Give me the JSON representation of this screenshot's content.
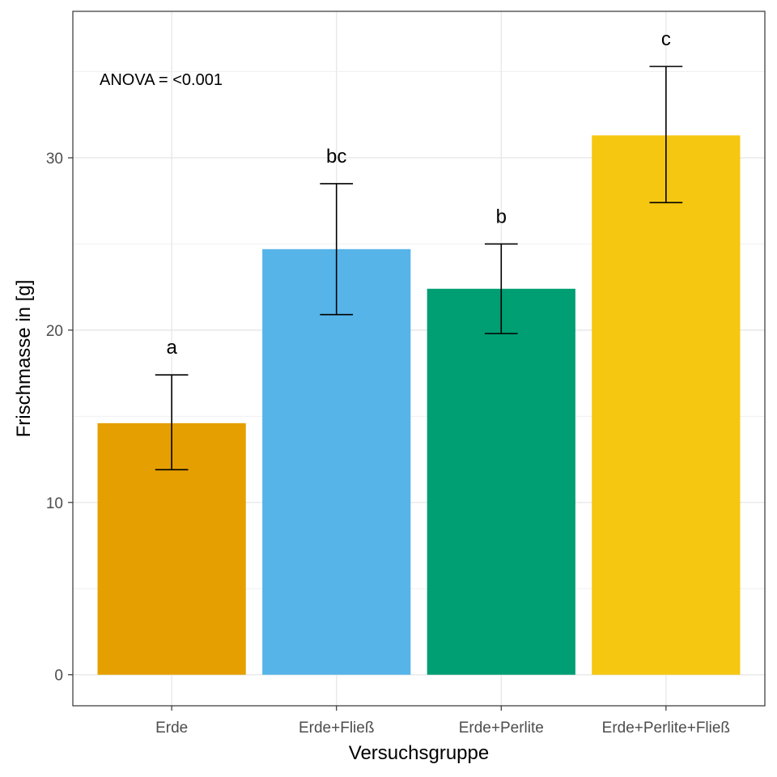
{
  "chart_data": {
    "type": "bar",
    "categories": [
      "Erde",
      "Erde+Fließ",
      "Erde+Perlite",
      "Erde+Perlite+Fließ"
    ],
    "values": [
      14.6,
      24.7,
      22.4,
      31.3
    ],
    "error_low": [
      11.9,
      20.9,
      19.8,
      27.4
    ],
    "error_high": [
      17.4,
      28.5,
      25.0,
      35.3
    ],
    "significance_letters": [
      "a",
      "bc",
      "b",
      "c"
    ],
    "bar_colors": [
      "#E69F00",
      "#56B4E9",
      "#009E73",
      "#F5C710"
    ],
    "xlabel": "Versuchsgruppe",
    "ylabel": "Frischmasse in [g]",
    "ylim": [
      -1.8,
      38.5
    ],
    "yticks": [
      0,
      10,
      20,
      30
    ],
    "grid": true,
    "annotation": "ANOVA = <0.001"
  }
}
